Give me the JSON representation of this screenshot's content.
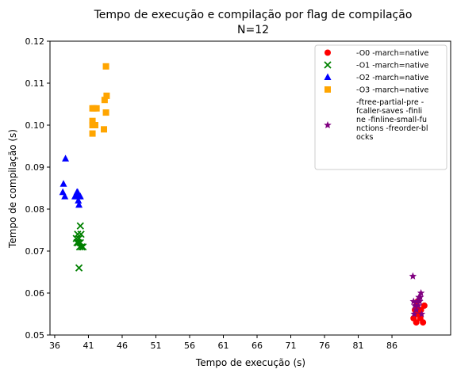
{
  "chart_data": {
    "type": "scatter",
    "title": "Tempo de execução e compilação por flag de compilação",
    "subtitle": "N=12",
    "xlabel": "Tempo de execução (s)",
    "ylabel": "Tempo de compilação (s)",
    "xlim": [
      35.3,
      94.7
    ],
    "ylim": [
      0.05,
      0.12
    ],
    "xticks": [
      "36",
      "41",
      "46",
      "51",
      "56",
      "61",
      "66",
      "71",
      "76",
      "81",
      "86"
    ],
    "yticks": [
      "0.05",
      "0.06",
      "0.07",
      "0.08",
      "0.09",
      "0.10",
      "0.11",
      "0.12"
    ],
    "legend_position": "top-right",
    "grid": false,
    "series": [
      {
        "name": "-O0 -march=native",
        "marker": "circle",
        "color": "#ff0000",
        "points": [
          [
            89.6,
            0.053
          ],
          [
            90.6,
            0.053
          ],
          [
            89.5,
            0.055
          ],
          [
            90.1,
            0.056
          ],
          [
            90.8,
            0.057
          ],
          [
            89.6,
            0.057
          ],
          [
            89.8,
            0.058
          ],
          [
            90.3,
            0.056
          ],
          [
            89.2,
            0.054
          ],
          [
            90.0,
            0.055
          ],
          [
            89.4,
            0.056
          ],
          [
            90.2,
            0.054
          ]
        ]
      },
      {
        "name": "-O1 -march=native",
        "marker": "x",
        "color": "#008000",
        "points": [
          [
            39.6,
            0.066
          ],
          [
            39.7,
            0.071
          ],
          [
            40.2,
            0.071
          ],
          [
            39.8,
            0.072
          ],
          [
            39.2,
            0.073
          ],
          [
            39.9,
            0.074
          ],
          [
            39.8,
            0.076
          ],
          [
            40.0,
            0.071
          ],
          [
            39.5,
            0.072
          ],
          [
            39.6,
            0.073
          ],
          [
            39.4,
            0.074
          ],
          [
            39.3,
            0.072
          ]
        ]
      },
      {
        "name": "-O2 -march=native",
        "marker": "triangle",
        "color": "#0000ff",
        "points": [
          [
            37.2,
            0.084
          ],
          [
            37.5,
            0.083
          ],
          [
            37.3,
            0.086
          ],
          [
            37.6,
            0.092
          ],
          [
            39.2,
            0.083
          ],
          [
            39.3,
            0.084
          ],
          [
            39.6,
            0.083
          ],
          [
            39.8,
            0.083
          ],
          [
            39.6,
            0.081
          ],
          [
            39.5,
            0.082
          ],
          [
            39.0,
            0.083
          ],
          [
            39.4,
            0.084
          ]
        ]
      },
      {
        "name": "-O3 -march=native",
        "marker": "square",
        "color": "#ffa500",
        "points": [
          [
            41.6,
            0.104
          ],
          [
            42.2,
            0.104
          ],
          [
            41.6,
            0.101
          ],
          [
            41.6,
            0.1
          ],
          [
            41.6,
            0.098
          ],
          [
            43.3,
            0.099
          ],
          [
            43.4,
            0.106
          ],
          [
            43.7,
            0.107
          ],
          [
            43.6,
            0.103
          ],
          [
            43.6,
            0.114
          ],
          [
            41.8,
            0.104
          ],
          [
            42.0,
            0.1
          ]
        ]
      },
      {
        "name": "-ftree-partial-pre -fcaller-saves -finline -finline-small-functions -freorder-blocks",
        "legend_lines": [
          "-ftree-partial-pre -",
          "fcaller-saves -finli",
          "ne -finline-small-fu",
          "nctions -freorder-bl",
          "ocks"
        ],
        "marker": "star",
        "color": "#800080",
        "points": [
          [
            89.1,
            0.064
          ],
          [
            89.2,
            0.058
          ],
          [
            89.7,
            0.058
          ],
          [
            90.3,
            0.06
          ],
          [
            90.2,
            0.059
          ],
          [
            89.9,
            0.057
          ],
          [
            89.3,
            0.055
          ],
          [
            89.6,
            0.056
          ],
          [
            90.4,
            0.055
          ],
          [
            90.1,
            0.058
          ],
          [
            89.4,
            0.057
          ],
          [
            90.0,
            0.059
          ]
        ]
      }
    ]
  }
}
